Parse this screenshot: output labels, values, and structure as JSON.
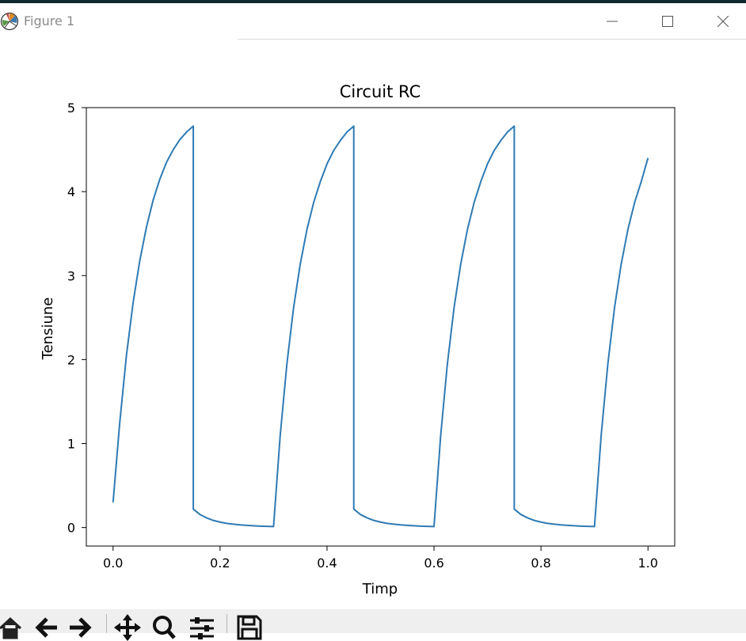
{
  "window": {
    "title": "Figure 1",
    "icon": "matplotlib-logo-icon",
    "controls": [
      "minimize-icon",
      "maximize-icon",
      "close-icon"
    ]
  },
  "toolbar": {
    "buttons": [
      "home-icon",
      "back-arrow-icon",
      "forward-arrow-icon",
      "pan-icon",
      "zoom-icon",
      "configure-subplots-icon",
      "save-icon"
    ]
  },
  "colors": {
    "line": "#2e7bb4",
    "axes": "#000000",
    "toolbar_bg": "#efefef"
  },
  "chart_data": {
    "type": "line",
    "title": "Circuit RC",
    "xlabel": "Timp",
    "ylabel": "Tensiune",
    "xlim": [
      -0.05,
      1.05
    ],
    "ylim": [
      -0.22,
      5.0
    ],
    "xticks": [
      "0.0",
      "0.2",
      "0.4",
      "0.6",
      "0.8",
      "1.0"
    ],
    "yticks": [
      "0",
      "1",
      "2",
      "3",
      "4",
      "5"
    ],
    "grid": false,
    "series": [
      {
        "x": [
          0.0,
          0.0125,
          0.025,
          0.0375,
          0.05,
          0.0625,
          0.075,
          0.0875,
          0.1,
          0.1125,
          0.125,
          0.1375,
          0.15,
          0.15,
          0.1625,
          0.175,
          0.1875,
          0.2,
          0.2125,
          0.225,
          0.2375,
          0.25,
          0.2625,
          0.275,
          0.2875,
          0.3,
          0.3,
          0.3125,
          0.325,
          0.3375,
          0.35,
          0.3625,
          0.375,
          0.3875,
          0.4,
          0.4125,
          0.425,
          0.4375,
          0.45,
          0.45,
          0.4625,
          0.475,
          0.4875,
          0.5,
          0.5125,
          0.525,
          0.5375,
          0.55,
          0.5625,
          0.575,
          0.5875,
          0.6,
          0.6,
          0.6125,
          0.625,
          0.6375,
          0.65,
          0.6625,
          0.675,
          0.6875,
          0.7,
          0.7125,
          0.725,
          0.7375,
          0.75,
          0.75,
          0.7625,
          0.775,
          0.7875,
          0.8,
          0.8125,
          0.825,
          0.8375,
          0.85,
          0.8625,
          0.875,
          0.8875,
          0.9,
          0.9,
          0.9125,
          0.925,
          0.9375,
          0.95,
          0.9625,
          0.975,
          0.9875,
          1.0
        ],
        "values": [
          0.3,
          1.25,
          2.05,
          2.68,
          3.18,
          3.58,
          3.9,
          4.15,
          4.35,
          4.5,
          4.62,
          4.71,
          4.78,
          0.22,
          0.155,
          0.115,
          0.085,
          0.065,
          0.05,
          0.04,
          0.032,
          0.026,
          0.021,
          0.017,
          0.014,
          0.012,
          0.012,
          1.1,
          1.95,
          2.62,
          3.14,
          3.55,
          3.87,
          4.12,
          4.33,
          4.49,
          4.61,
          4.71,
          4.78,
          0.22,
          0.155,
          0.115,
          0.085,
          0.065,
          0.05,
          0.04,
          0.032,
          0.026,
          0.021,
          0.017,
          0.014,
          0.012,
          0.012,
          1.1,
          1.95,
          2.62,
          3.14,
          3.55,
          3.87,
          4.12,
          4.33,
          4.49,
          4.61,
          4.71,
          4.78,
          0.22,
          0.155,
          0.115,
          0.085,
          0.065,
          0.05,
          0.04,
          0.032,
          0.026,
          0.021,
          0.017,
          0.014,
          0.012,
          0.012,
          1.1,
          1.95,
          2.62,
          3.14,
          3.55,
          3.87,
          4.12,
          4.4
        ]
      }
    ]
  }
}
